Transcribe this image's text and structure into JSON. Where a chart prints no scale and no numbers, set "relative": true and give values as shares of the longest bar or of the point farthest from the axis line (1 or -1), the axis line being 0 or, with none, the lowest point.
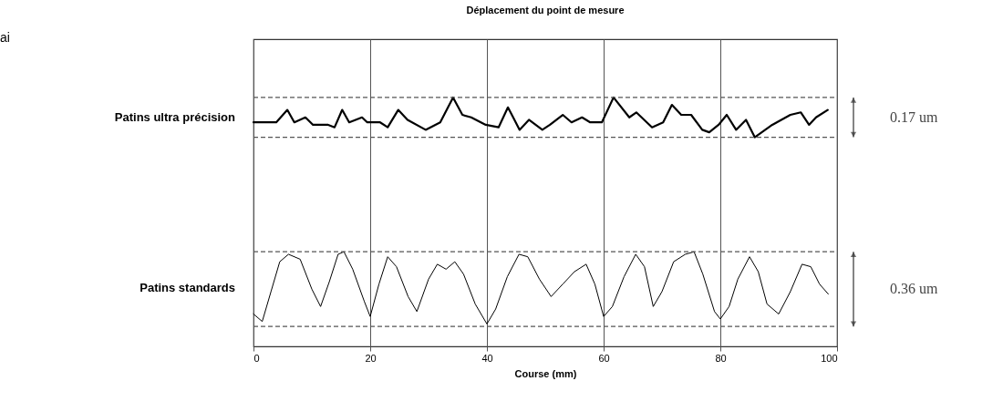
{
  "chart_data": {
    "type": "line",
    "title": "Déplacement du point de mesure",
    "xlabel": "Course (mm)",
    "relative": true,
    "xlim": [
      0,
      100
    ],
    "xticks": [
      0,
      20,
      40,
      60,
      80,
      100
    ],
    "grid": "x",
    "tick_labels": "x",
    "legend": false,
    "series": [
      {
        "name": "Patins ultra précision",
        "color": "#000000",
        "x": [
          0,
          1.9,
          3.9,
          5.8,
          7,
          8.9,
          10.2,
          12.8,
          13.9,
          15.2,
          16.4,
          18.6,
          19.5,
          21.7,
          23,
          24.8,
          26.4,
          29.5,
          32,
          34.2,
          35.8,
          37.3,
          39.8,
          42,
          43.6,
          44.5,
          45.6,
          47.2,
          49.5,
          50.8,
          53,
          54.5,
          56.3,
          57.7,
          59.7,
          61.7,
          64.4,
          65.6,
          68.3,
          70.2,
          71.7,
          73.3,
          75,
          76.9,
          78.1,
          79.7,
          81.1,
          82.7,
          84.4,
          85.9,
          88.9,
          92,
          93.8,
          95.2,
          96.4,
          98.4
        ],
        "values": [
          0.9,
          0.9,
          0.9,
          0.95,
          0.9,
          0.92,
          0.89,
          0.89,
          0.88,
          0.95,
          0.9,
          0.92,
          0.9,
          0.9,
          0.88,
          0.95,
          0.91,
          0.87,
          0.9,
          1.0,
          0.93,
          0.92,
          0.89,
          0.88,
          0.96,
          0.92,
          0.87,
          0.91,
          0.87,
          0.89,
          0.93,
          0.9,
          0.92,
          0.9,
          0.9,
          1.0,
          0.92,
          0.94,
          0.88,
          0.9,
          0.97,
          0.93,
          0.93,
          0.87,
          0.86,
          0.89,
          0.93,
          0.87,
          0.91,
          0.84,
          0.89,
          0.93,
          0.94,
          0.89,
          0.92,
          0.95
        ]
      },
      {
        "name": "Patins standards",
        "color": "#000000",
        "x": [
          0,
          1.5,
          3,
          4.5,
          6,
          8,
          10,
          11.5,
          13,
          14.5,
          15.5,
          17,
          19,
          20,
          21.5,
          23,
          24.5,
          26.5,
          28,
          30,
          31.5,
          33,
          34.5,
          36,
          38,
          40,
          41.5,
          43.5,
          45.5,
          47,
          49,
          51,
          53,
          55,
          57,
          58.5,
          60,
          61.5,
          63.5,
          65.5,
          67,
          68.5,
          70,
          72,
          74,
          75.5,
          77,
          79,
          80,
          81.5,
          83,
          85,
          86.5,
          88,
          90,
          92,
          94,
          95.5,
          97,
          98.5
        ],
        "values": [
          0.13,
          0.1,
          0.22,
          0.34,
          0.37,
          0.35,
          0.23,
          0.16,
          0.26,
          0.37,
          0.38,
          0.31,
          0.18,
          0.12,
          0.25,
          0.36,
          0.32,
          0.2,
          0.14,
          0.27,
          0.33,
          0.31,
          0.34,
          0.29,
          0.17,
          0.09,
          0.15,
          0.28,
          0.37,
          0.36,
          0.27,
          0.2,
          0.25,
          0.3,
          0.33,
          0.25,
          0.12,
          0.16,
          0.28,
          0.37,
          0.32,
          0.16,
          0.22,
          0.34,
          0.37,
          0.38,
          0.29,
          0.14,
          0.11,
          0.16,
          0.27,
          0.36,
          0.3,
          0.17,
          0.13,
          0.22,
          0.33,
          0.32,
          0.25,
          0.21
        ]
      }
    ],
    "ref_lines": [
      {
        "axis": "y",
        "value": 1.0,
        "line_style": "dashed"
      },
      {
        "axis": "y",
        "value": 0.84,
        "line_style": "dashed"
      },
      {
        "axis": "y",
        "value": 0.38,
        "line_style": "dashed"
      },
      {
        "axis": "y",
        "value": 0.08,
        "line_style": "dashed"
      }
    ],
    "annotations": [
      "ai",
      "0.17 um",
      "0.36 um"
    ]
  }
}
